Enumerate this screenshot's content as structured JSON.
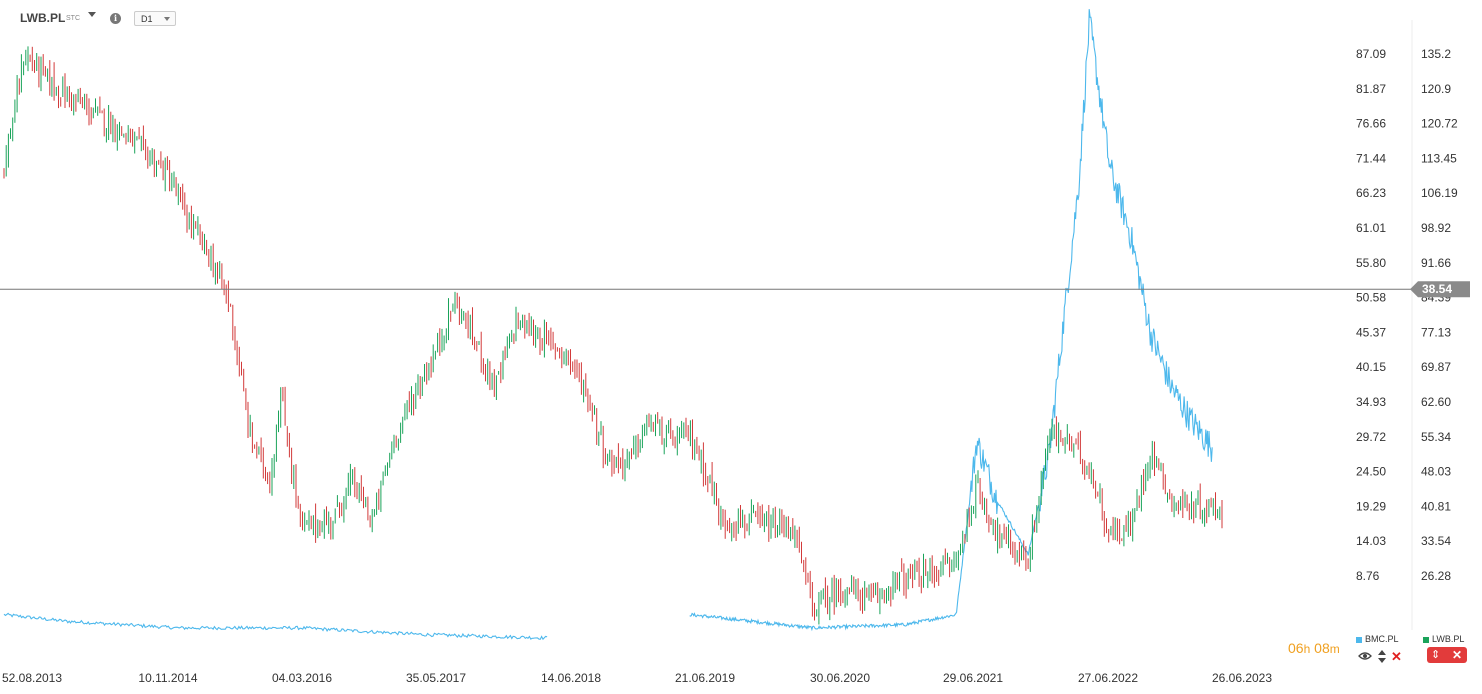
{
  "header": {
    "symbol": "LWB.PL",
    "symbol_type": "STC",
    "timeframe": "D1"
  },
  "timer": {
    "hours": "06",
    "hours_unit": "h",
    "minutes": "08",
    "minutes_unit": "m"
  },
  "legend": [
    {
      "name": "BMC.PL",
      "color": "#4db8ec"
    },
    {
      "name": "LWB.PL",
      "color": "#1aa35a"
    }
  ],
  "colors": {
    "up": "#1aa35a",
    "down": "#d23a3a",
    "compare": "#4db8ec",
    "price_line": "#777777",
    "price_tag": "#8a8a8a"
  },
  "chart_data": {
    "type": "candlestick",
    "instrument": "LWB.PL",
    "compare_instrument": "BMC.PL",
    "current_price": "38.54",
    "x_tick_labels": [
      "52.08.2013",
      "10.11.2014",
      "04.03.2016",
      "35.05.2017",
      "14.06.2018",
      "21.06.2019",
      "30.06.2020",
      "29.06.2021",
      "27.06.2022",
      "26.06.2023"
    ],
    "left_axis_labels": [
      "87.09",
      "81.87",
      "76.66",
      "71.44",
      "66.23",
      "61.01",
      "55.80",
      "50.58",
      "45.37",
      "40.15",
      "34.93",
      "29.72",
      "24.50",
      "19.29",
      "14.03",
      "8.76"
    ],
    "right_axis_labels": [
      "135.2",
      "120.9",
      "120.72",
      "113.45",
      "106.19",
      "98.92",
      "91.66",
      "84.39",
      "77.13",
      "69.87",
      "62.60",
      "55.34",
      "48.03",
      "40.81",
      "33.54",
      "26.28"
    ],
    "lwb_close_series": [
      {
        "x": "2013-08",
        "y": 70
      },
      {
        "x": "2013-10",
        "y": 87
      },
      {
        "x": "2014-01",
        "y": 82
      },
      {
        "x": "2014-04",
        "y": 79
      },
      {
        "x": "2014-07",
        "y": 76
      },
      {
        "x": "2014-10",
        "y": 72
      },
      {
        "x": "2014-12",
        "y": 69
      },
      {
        "x": "2015-02",
        "y": 62
      },
      {
        "x": "2015-04",
        "y": 57
      },
      {
        "x": "2015-06",
        "y": 50
      },
      {
        "x": "2015-08",
        "y": 30
      },
      {
        "x": "2015-10",
        "y": 23
      },
      {
        "x": "2015-11",
        "y": 36
      },
      {
        "x": "2016-01",
        "y": 16
      },
      {
        "x": "2016-04",
        "y": 17
      },
      {
        "x": "2016-06",
        "y": 23
      },
      {
        "x": "2016-08",
        "y": 17
      },
      {
        "x": "2016-10",
        "y": 29
      },
      {
        "x": "2016-12",
        "y": 36
      },
      {
        "x": "2017-02",
        "y": 42
      },
      {
        "x": "2017-04",
        "y": 50
      },
      {
        "x": "2017-06",
        "y": 44
      },
      {
        "x": "2017-08",
        "y": 37
      },
      {
        "x": "2017-10",
        "y": 47
      },
      {
        "x": "2017-12",
        "y": 45
      },
      {
        "x": "2018-03",
        "y": 42
      },
      {
        "x": "2018-05",
        "y": 36
      },
      {
        "x": "2018-07",
        "y": 26
      },
      {
        "x": "2018-09",
        "y": 26
      },
      {
        "x": "2018-11",
        "y": 32
      },
      {
        "x": "2019-01",
        "y": 29
      },
      {
        "x": "2019-03",
        "y": 30
      },
      {
        "x": "2019-05",
        "y": 23
      },
      {
        "x": "2019-06",
        "y": 17
      },
      {
        "x": "2019-09",
        "y": 17
      },
      {
        "x": "2019-11",
        "y": 16
      },
      {
        "x": "2020-01",
        "y": 16
      },
      {
        "x": "2020-03",
        "y": 4
      },
      {
        "x": "2020-06",
        "y": 7
      },
      {
        "x": "2020-09",
        "y": 5
      },
      {
        "x": "2020-11",
        "y": 8
      },
      {
        "x": "2021-02",
        "y": 9
      },
      {
        "x": "2021-05",
        "y": 11
      },
      {
        "x": "2021-07",
        "y": 22
      },
      {
        "x": "2021-09",
        "y": 15
      },
      {
        "x": "2021-12",
        "y": 11
      },
      {
        "x": "2022-02",
        "y": 30
      },
      {
        "x": "2022-04",
        "y": 29
      },
      {
        "x": "2022-06",
        "y": 25
      },
      {
        "x": "2022-08",
        "y": 15
      },
      {
        "x": "2022-10",
        "y": 16
      },
      {
        "x": "2022-12",
        "y": 28
      },
      {
        "x": "2023-02",
        "y": 20
      },
      {
        "x": "2023-04",
        "y": 19
      },
      {
        "x": "2023-06",
        "y": 19
      }
    ],
    "bmc_close_series": [
      {
        "x": "2013-08",
        "y": 3.0
      },
      {
        "x": "2014-02",
        "y": 2.0
      },
      {
        "x": "2015-01",
        "y": 1.0
      },
      {
        "x": "2016-01",
        "y": 1.0
      },
      {
        "x": "2017-01",
        "y": 0.0
      },
      {
        "x": "2018-01",
        "y": -0.5
      },
      {
        "x": "2019-03",
        "y": 3.0
      },
      {
        "x": "2019-09",
        "y": 2.0
      },
      {
        "x": "2020-03",
        "y": 1.0
      },
      {
        "x": "2020-12",
        "y": 1.5
      },
      {
        "x": "2021-05",
        "y": 3.0
      },
      {
        "x": "2021-07",
        "y": 29.0
      },
      {
        "x": "2021-09",
        "y": 20.0
      },
      {
        "x": "2021-12",
        "y": 12.0
      },
      {
        "x": "2022-02",
        "y": 27.0
      },
      {
        "x": "2022-05",
        "y": 68.0
      },
      {
        "x": "2022-06",
        "y": 92.0
      },
      {
        "x": "2022-08",
        "y": 70.0
      },
      {
        "x": "2022-10",
        "y": 60.0
      },
      {
        "x": "2022-12",
        "y": 45.0
      },
      {
        "x": "2023-02",
        "y": 37.0
      },
      {
        "x": "2023-04",
        "y": 32.0
      },
      {
        "x": "2023-06",
        "y": 28.0
      }
    ]
  }
}
